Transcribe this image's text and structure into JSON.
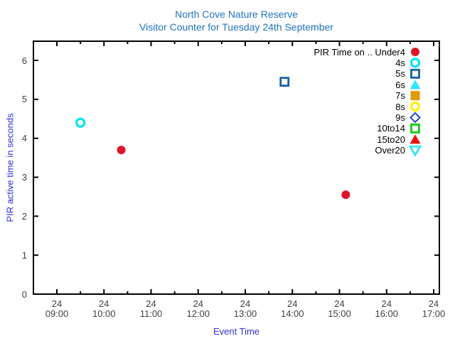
{
  "title": {
    "line1": "North Cove Nature Reserve",
    "line2": "Visitor Counter for Tuesday 24th September",
    "color": "#2173bd"
  },
  "chart_data": {
    "type": "scatter",
    "title": "North Cove Nature Reserve",
    "subtitle": "Visitor Counter for Tuesday 24th September",
    "xlabel": "Event Time",
    "ylabel": "PIR active time in seconds",
    "axis_label_color": "#3030d8",
    "tick_label_color": "#404040",
    "frame_color": "#000000",
    "grid": false,
    "legend_position": "top-right-inside",
    "x_range": [
      "08:30",
      "17:07"
    ],
    "ylim": [
      0,
      6.5
    ],
    "y_ticks": [
      "0",
      "1",
      "2",
      "3",
      "4",
      "5",
      "6"
    ],
    "x_major_ticks": [
      {
        "date": "24",
        "time": "09:00"
      },
      {
        "date": "24",
        "time": "10:00"
      },
      {
        "date": "24",
        "time": "11:00"
      },
      {
        "date": "24",
        "time": "12:00"
      },
      {
        "date": "24",
        "time": "13:00"
      },
      {
        "date": "24",
        "time": "14:00"
      },
      {
        "date": "24",
        "time": "15:00"
      },
      {
        "date": "24",
        "time": "16:00"
      },
      {
        "date": "24",
        "time": "17:00"
      }
    ],
    "x_minor_ticks": [
      "09:30",
      "10:30",
      "11:30",
      "12:30",
      "13:30",
      "14:30",
      "15:30",
      "16:30"
    ],
    "series": [
      {
        "name": "PIR Time on .. Under4",
        "marker": "circle-filled",
        "color": "#e01428",
        "points": [
          {
            "time": "10:22",
            "seconds": 3.7
          },
          {
            "time": "15:08",
            "seconds": 2.55
          }
        ]
      },
      {
        "name": "4s",
        "marker": "circle-open",
        "color": "#00e6f2",
        "points": [
          {
            "time": "09:30",
            "seconds": 4.4
          }
        ]
      },
      {
        "name": "5s",
        "marker": "square-open",
        "color": "#1660a8",
        "points": [
          {
            "time": "13:50",
            "seconds": 5.45
          }
        ]
      },
      {
        "name": "6s",
        "marker": "triangle-up-filled",
        "color": "#33e6f5",
        "points": []
      },
      {
        "name": "7s",
        "marker": "square-filled",
        "color": "#df9d00",
        "points": []
      },
      {
        "name": "8s",
        "marker": "circle-open",
        "color": "#ffee00",
        "points": []
      },
      {
        "name": "9s",
        "marker": "diamond-open",
        "color": "#2443d8",
        "points": []
      },
      {
        "name": "10to14",
        "marker": "square-open",
        "color": "#0fcc0f",
        "points": []
      },
      {
        "name": "15to20",
        "marker": "triangle-up-filled",
        "color": "#ee0f0f",
        "points": []
      },
      {
        "name": "Over20",
        "marker": "triangle-down-open",
        "color": "#33e6f5",
        "points": []
      }
    ]
  }
}
